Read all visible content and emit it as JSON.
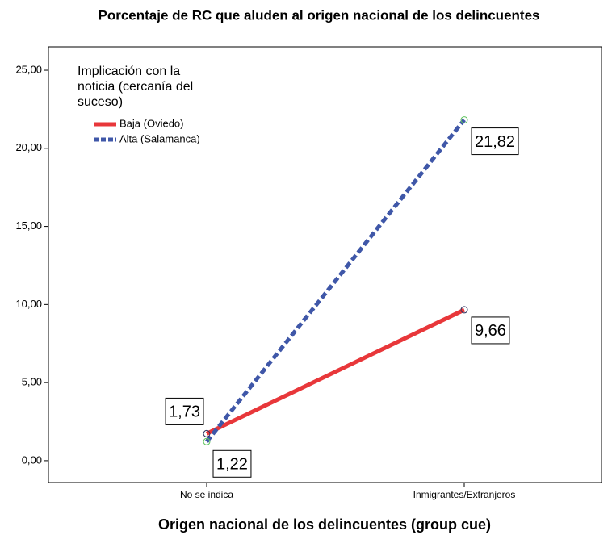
{
  "chart_data": {
    "type": "line",
    "title": "Porcentaje de RC que aluden al origen nacional de los delincuentes",
    "x_label": "Origen nacional de los delincuentes (group cue)",
    "categories": [
      "No se indica",
      "Inmigrantes/Extranjeros"
    ],
    "legend_title": [
      "Implicación con la",
      "noticia (cercanía del",
      "suceso)"
    ],
    "legend_position": "upper left",
    "series": [
      {
        "name": "Baja (Oviedo)",
        "color": "#e8373a",
        "dash": "solid",
        "marker_color": "#2b2f5e",
        "values": [
          1.73,
          9.66
        ],
        "value_labels": [
          "1,73",
          "9,66"
        ]
      },
      {
        "name": "Alta (Salamanca)",
        "color": "#3f57a8",
        "dash": "dashed",
        "marker_color": "#5cc35c",
        "values": [
          1.22,
          21.82
        ],
        "value_labels": [
          "1,22",
          "21,82"
        ]
      }
    ],
    "ylim": [
      -1.4,
      26.5
    ],
    "yticks": [
      {
        "value": 0,
        "label": "0,00"
      },
      {
        "value": 5,
        "label": "5,00"
      },
      {
        "value": 10,
        "label": "10,00"
      },
      {
        "value": 15,
        "label": "15,00"
      },
      {
        "value": 20,
        "label": "20,00"
      },
      {
        "value": 25,
        "label": "25,00"
      }
    ],
    "grid": false
  }
}
